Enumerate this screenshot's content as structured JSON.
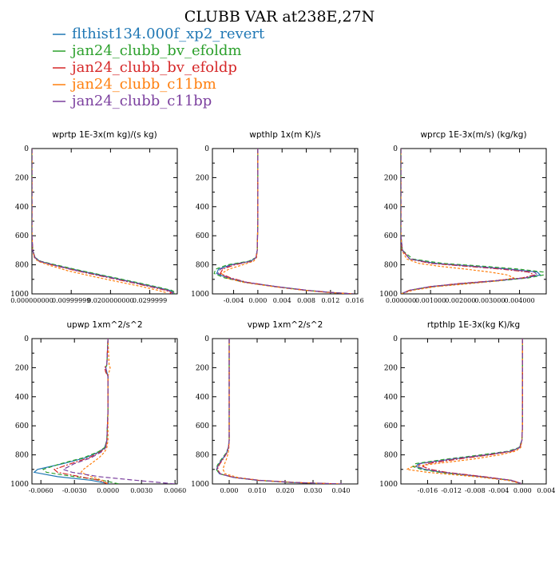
{
  "title": "CLUBB VAR at238E,27N",
  "legend": [
    {
      "label": "flthist134.000f_xp2_revert",
      "color": "#1f77b4"
    },
    {
      "label": "jan24_clubb_bv_efoldm",
      "color": "#2ca02c"
    },
    {
      "label": "jan24_clubb_bv_efoldp",
      "color": "#d62728"
    },
    {
      "label": "jan24_clubb_c11bm",
      "color": "#ff7f0e"
    },
    {
      "label": "jan24_clubb_c11bp",
      "color": "#7b3f9e"
    }
  ],
  "chart_data": [
    {
      "type": "line",
      "title": "wprtp   1E-3x(m kg)/(s kg)",
      "ylim": [
        1000,
        0
      ],
      "yticks": [
        "0",
        "200",
        "400",
        "600",
        "800",
        "1000"
      ],
      "xlim": [
        0,
        0.037
      ],
      "xticks": [
        {
          "v": 0,
          "label": "0.000000000"
        },
        {
          "v": 0.01,
          "label": "0.00999999"
        },
        {
          "v": 0.02,
          "label": "0.0200000000"
        },
        {
          "v": 0.03,
          "label": "0.0299999"
        }
      ],
      "pressure": [
        0,
        200,
        400,
        600,
        700,
        750,
        775,
        800,
        840,
        880,
        920,
        950,
        975,
        990,
        1000
      ],
      "series": [
        {
          "name": "flthist134.000f_xp2_revert",
          "values": [
            0,
            0,
            0,
            0,
            0.0002,
            0.0008,
            0.002,
            0.0055,
            0.012,
            0.019,
            0.026,
            0.031,
            0.035,
            0.036,
            0.0355
          ]
        },
        {
          "name": "jan24_clubb_bv_efoldm",
          "values": [
            0,
            0,
            0,
            0,
            0.0002,
            0.0008,
            0.0022,
            0.006,
            0.0125,
            0.0195,
            0.0265,
            0.0315,
            0.0355,
            0.0365,
            0.036
          ]
        },
        {
          "name": "jan24_clubb_bv_efoldp",
          "values": [
            0,
            0,
            0,
            0,
            0.0002,
            0.0007,
            0.0018,
            0.005,
            0.0112,
            0.018,
            0.025,
            0.03,
            0.034,
            0.0355,
            0.035
          ]
        },
        {
          "name": "jan24_clubb_c11bm",
          "values": [
            0,
            0,
            0,
            0,
            0.0002,
            0.0006,
            0.0015,
            0.004,
            0.009,
            0.0155,
            0.0225,
            0.028,
            0.032,
            0.034,
            0.034
          ]
        },
        {
          "name": "jan24_clubb_c11bp",
          "values": [
            0,
            0,
            0,
            0,
            0.0002,
            0.0007,
            0.002,
            0.0052,
            0.0115,
            0.0185,
            0.0255,
            0.0305,
            0.0345,
            0.036,
            0.0355
          ]
        }
      ]
    },
    {
      "type": "line",
      "title": "wpthlp   1x(m K)/s",
      "ylim": [
        1000,
        0
      ],
      "yticks": [
        "0",
        "200",
        "400",
        "600",
        "800",
        "1000"
      ],
      "xlim": [
        -0.0075,
        0.0165
      ],
      "xticks": [
        {
          "v": -0.004,
          "label": "-0.004"
        },
        {
          "v": 0,
          "label": "0.000"
        },
        {
          "v": 0.004,
          "label": "0.004"
        },
        {
          "v": 0.008,
          "label": "0.008"
        },
        {
          "v": 0.012,
          "label": "0.012"
        },
        {
          "v": 0.016,
          "label": "0.016"
        }
      ],
      "pressure": [
        0,
        200,
        400,
        500,
        700,
        750,
        775,
        800,
        830,
        860,
        890,
        920,
        950,
        975,
        990,
        1000
      ],
      "series": [
        {
          "name": "flthist134.000f_xp2_revert",
          "values": [
            0,
            0,
            0,
            0,
            -0.0001,
            -0.0003,
            -0.0012,
            -0.0045,
            -0.0065,
            -0.0068,
            -0.005,
            -0.002,
            0.003,
            0.008,
            0.012,
            0.0158
          ]
        },
        {
          "name": "jan24_clubb_bv_efoldm",
          "values": [
            0,
            0,
            0,
            0,
            -0.0001,
            -0.0003,
            -0.0015,
            -0.005,
            -0.007,
            -0.0072,
            -0.0055,
            -0.0022,
            0.0028,
            0.0078,
            0.0118,
            0.0158
          ]
        },
        {
          "name": "jan24_clubb_bv_efoldp",
          "values": [
            0,
            0,
            0,
            0,
            -0.0001,
            -0.0003,
            -0.001,
            -0.0038,
            -0.0058,
            -0.0062,
            -0.0045,
            -0.0018,
            0.003,
            0.008,
            0.012,
            0.0158
          ]
        },
        {
          "name": "jan24_clubb_c11bm",
          "values": [
            0,
            0,
            0,
            0,
            -0.0001,
            -0.0002,
            -0.0007,
            -0.0025,
            -0.0048,
            -0.006,
            -0.0052,
            -0.0025,
            0.0025,
            0.0075,
            0.0115,
            0.0155
          ]
        },
        {
          "name": "jan24_clubb_c11bp",
          "values": [
            0,
            0,
            0,
            0,
            -0.0001,
            -0.0003,
            -0.0011,
            -0.0042,
            -0.0062,
            -0.0066,
            -0.0048,
            -0.002,
            0.003,
            0.008,
            0.012,
            0.0158
          ]
        }
      ]
    },
    {
      "type": "line",
      "title": "wprcp   1E-3x(m/s) (kg/kg)",
      "ylim": [
        1000,
        0
      ],
      "yticks": [
        "0",
        "200",
        "400",
        "600",
        "800",
        "1000"
      ],
      "xlim": [
        0,
        0.0049
      ],
      "xticks": [
        {
          "v": 0,
          "label": "0.000000"
        },
        {
          "v": 0.001,
          "label": "0.001000"
        },
        {
          "v": 0.002,
          "label": "0.002000"
        },
        {
          "v": 0.003,
          "label": "0.003000"
        },
        {
          "v": 0.004,
          "label": "0.004000"
        }
      ],
      "pressure": [
        0,
        200,
        400,
        600,
        700,
        760,
        790,
        810,
        830,
        850,
        870,
        890,
        910,
        930,
        950,
        975,
        1000
      ],
      "series": [
        {
          "name": "flthist134.000f_xp2_revert",
          "values": [
            0,
            0,
            0,
            0,
            5e-05,
            0.0003,
            0.0012,
            0.0025,
            0.0037,
            0.0046,
            0.0047,
            0.0042,
            0.0032,
            0.002,
            0.001,
            0.0003,
            0
          ]
        },
        {
          "name": "jan24_clubb_bv_efoldm",
          "values": [
            0,
            0,
            0,
            0,
            5e-05,
            0.0004,
            0.0014,
            0.0028,
            0.004,
            0.0048,
            0.0048,
            0.0043,
            0.0033,
            0.0021,
            0.0011,
            0.0003,
            0
          ]
        },
        {
          "name": "jan24_clubb_bv_efoldp",
          "values": [
            0,
            0,
            0,
            0,
            5e-05,
            0.0003,
            0.001,
            0.0022,
            0.0034,
            0.0043,
            0.0045,
            0.0041,
            0.0031,
            0.0019,
            0.001,
            0.0003,
            0
          ]
        },
        {
          "name": "jan24_clubb_c11bm",
          "values": [
            0,
            0,
            0,
            0,
            3e-05,
            0.0002,
            0.0006,
            0.0013,
            0.0022,
            0.003,
            0.0036,
            0.0038,
            0.0033,
            0.0023,
            0.0012,
            0.0004,
            0
          ]
        },
        {
          "name": "jan24_clubb_c11bp",
          "values": [
            0,
            0,
            0,
            0,
            5e-05,
            0.0003,
            0.0011,
            0.0024,
            0.0036,
            0.0045,
            0.0046,
            0.0042,
            0.0032,
            0.002,
            0.001,
            0.0003,
            0
          ]
        }
      ]
    },
    {
      "type": "line",
      "title": "upwp   1xm^2/s^2",
      "ylim": [
        1000,
        0
      ],
      "yticks": [
        "0",
        "200",
        "400",
        "600",
        "800",
        "1000"
      ],
      "xlim": [
        -0.0068,
        0.0062
      ],
      "xticks": [
        {
          "v": -0.006,
          "label": "-0.0060"
        },
        {
          "v": -0.003,
          "label": "-0.0030"
        },
        {
          "v": 0,
          "label": "0.0000"
        },
        {
          "v": 0.003,
          "label": "0.0030"
        },
        {
          "v": 0.006,
          "label": "0.0060"
        }
      ],
      "pressure": [
        0,
        180,
        200,
        230,
        260,
        300,
        500,
        700,
        750,
        780,
        820,
        860,
        900,
        920,
        950,
        975,
        1000
      ],
      "series": [
        {
          "name": "flthist134.000f_xp2_revert",
          "values": [
            0,
            -0.0001,
            -0.0002,
            -0.0001,
            0,
            0,
            0,
            -0.0001,
            -0.0003,
            -0.0008,
            -0.002,
            -0.004,
            -0.0063,
            -0.0066,
            -0.0045,
            -0.0015,
            0.0002
          ]
        },
        {
          "name": "jan24_clubb_bv_efoldm",
          "values": [
            0,
            -0.0001,
            -0.0002,
            -0.0002,
            0,
            0,
            0,
            -0.0001,
            -0.0003,
            -0.0009,
            -0.0022,
            -0.0042,
            -0.0058,
            -0.0055,
            -0.003,
            -0.0005,
            0.001
          ]
        },
        {
          "name": "jan24_clubb_bv_efoldp",
          "values": [
            0,
            -0.0001,
            -0.0003,
            -0.0002,
            0,
            0,
            0,
            -0.0001,
            -0.0002,
            -0.0007,
            -0.0017,
            -0.0033,
            -0.0048,
            -0.0045,
            -0.0025,
            -0.0008,
            0
          ]
        },
        {
          "name": "jan24_clubb_c11bm",
          "values": [
            0,
            0.0001,
            0.0002,
            0.0001,
            0,
            0,
            0,
            0,
            -0.0001,
            -0.0003,
            -0.0008,
            -0.0015,
            -0.0022,
            -0.0024,
            -0.0015,
            -0.0005,
            0
          ]
        },
        {
          "name": "jan24_clubb_c11bp",
          "values": [
            0,
            -0.0001,
            -0.0002,
            -0.0001,
            0,
            0,
            0,
            -0.0001,
            -0.0002,
            -0.0006,
            -0.0015,
            -0.003,
            -0.004,
            -0.0032,
            -0.0008,
            0.0025,
            0.006
          ]
        }
      ]
    },
    {
      "type": "line",
      "title": "vpwp   1xm^2/s^2",
      "ylim": [
        1000,
        0
      ],
      "yticks": [
        "0",
        "200",
        "400",
        "600",
        "800",
        "1000"
      ],
      "xlim": [
        -0.006,
        0.046
      ],
      "xticks": [
        {
          "v": 0,
          "label": "0.000"
        },
        {
          "v": 0.01,
          "label": "0.010"
        },
        {
          "v": 0.02,
          "label": "0.020"
        },
        {
          "v": 0.03,
          "label": "0.030"
        },
        {
          "v": 0.04,
          "label": "0.040"
        }
      ],
      "pressure": [
        0,
        200,
        400,
        600,
        700,
        750,
        790,
        830,
        870,
        900,
        930,
        955,
        975,
        990,
        1000
      ],
      "series": [
        {
          "name": "flthist134.000f_xp2_revert",
          "values": [
            0,
            0,
            0,
            0,
            0,
            -0.0003,
            -0.001,
            -0.0025,
            -0.004,
            -0.0045,
            -0.0035,
            0.0015,
            0.01,
            0.022,
            0.038
          ]
        },
        {
          "name": "jan24_clubb_bv_efoldm",
          "values": [
            0,
            0,
            0,
            0,
            0,
            -0.0003,
            -0.0012,
            -0.0028,
            -0.0042,
            -0.0046,
            -0.0035,
            0.0016,
            0.0102,
            0.0225,
            0.039
          ]
        },
        {
          "name": "jan24_clubb_bv_efoldp",
          "values": [
            0,
            0,
            0,
            0,
            0,
            -0.0002,
            -0.0009,
            -0.0022,
            -0.0036,
            -0.0042,
            -0.0032,
            0.0016,
            0.0105,
            0.023,
            0.0395
          ]
        },
        {
          "name": "jan24_clubb_c11bm",
          "values": [
            0,
            0,
            0,
            0,
            0,
            -0.0001,
            -0.0004,
            -0.001,
            -0.0018,
            -0.0022,
            -0.0015,
            0.003,
            0.011,
            0.024,
            0.04
          ]
        },
        {
          "name": "jan24_clubb_c11bp",
          "values": [
            0,
            0,
            0,
            0,
            0,
            -0.0003,
            -0.001,
            -0.0024,
            -0.0039,
            -0.0044,
            -0.0033,
            0.0017,
            0.0108,
            0.0235,
            0.0405
          ]
        }
      ]
    },
    {
      "type": "line",
      "title": "rtpthlp   1E-3x(kg K)/kg",
      "ylim": [
        1000,
        0
      ],
      "yticks": [
        "0",
        "200",
        "400",
        "600",
        "800",
        "1000"
      ],
      "xlim": [
        -0.0205,
        0.004
      ],
      "xticks": [
        {
          "v": -0.016,
          "label": "-0.016"
        },
        {
          "v": -0.012,
          "label": "-0.012"
        },
        {
          "v": -0.008,
          "label": "-0.008"
        },
        {
          "v": -0.004,
          "label": "-0.004"
        },
        {
          "v": 0,
          "label": "0.000"
        },
        {
          "v": 0.004,
          "label": "0.004"
        }
      ],
      "pressure": [
        0,
        200,
        400,
        600,
        700,
        750,
        775,
        800,
        830,
        860,
        880,
        900,
        920,
        950,
        975,
        1000
      ],
      "series": [
        {
          "name": "flthist134.000f_xp2_revert",
          "values": [
            0,
            0,
            0,
            0,
            -0.0001,
            -0.0005,
            -0.002,
            -0.006,
            -0.012,
            -0.0175,
            -0.018,
            -0.0165,
            -0.0135,
            -0.007,
            -0.002,
            0
          ]
        },
        {
          "name": "jan24_clubb_bv_efoldm",
          "values": [
            0,
            0,
            0,
            0,
            -0.0001,
            -0.0006,
            -0.0025,
            -0.007,
            -0.013,
            -0.018,
            -0.0185,
            -0.017,
            -0.014,
            -0.0072,
            -0.002,
            0
          ]
        },
        {
          "name": "jan24_clubb_bv_efoldp",
          "values": [
            0,
            0,
            0,
            0,
            -0.0001,
            -0.0004,
            -0.0018,
            -0.0055,
            -0.011,
            -0.016,
            -0.0168,
            -0.0155,
            -0.0128,
            -0.0065,
            -0.0018,
            0
          ]
        },
        {
          "name": "jan24_clubb_c11bm",
          "values": [
            0,
            0,
            0,
            0,
            -0.0001,
            -0.0003,
            -0.0012,
            -0.0038,
            -0.0085,
            -0.0145,
            -0.0185,
            -0.0195,
            -0.016,
            -0.008,
            -0.0025,
            0
          ]
        },
        {
          "name": "jan24_clubb_c11bp",
          "values": [
            0,
            0,
            0,
            0,
            -0.0001,
            -0.0005,
            -0.0021,
            -0.0062,
            -0.0122,
            -0.0172,
            -0.0178,
            -0.0163,
            -0.0133,
            -0.0068,
            -0.0019,
            0
          ]
        }
      ]
    }
  ]
}
